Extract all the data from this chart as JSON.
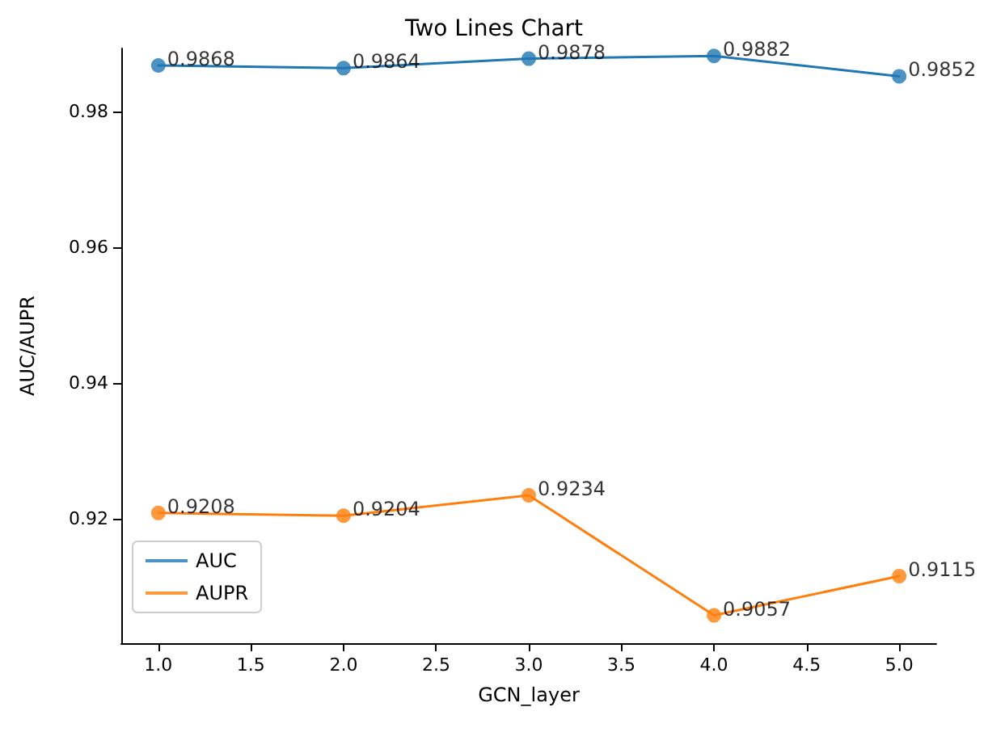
{
  "chart_data": {
    "type": "line",
    "title": "Two Lines Chart",
    "xlabel": "GCN_layer",
    "ylabel": "AUC/AUPR",
    "x": [
      1,
      2,
      3,
      4,
      5
    ],
    "series": [
      {
        "name": "AUC",
        "color": "#1f77b4",
        "values": [
          0.9868,
          0.9864,
          0.9878,
          0.9882,
          0.9852
        ]
      },
      {
        "name": "AUPR",
        "color": "#ff7f0e",
        "values": [
          0.9208,
          0.9204,
          0.9234,
          0.9057,
          0.9115
        ]
      }
    ],
    "xlim": [
      0.8,
      5.2
    ],
    "xticks": [
      {
        "value": 1,
        "label": "1.0"
      },
      {
        "value": 1.5,
        "label": "1.5"
      },
      {
        "value": 2,
        "label": "2.0"
      },
      {
        "value": 2.5,
        "label": "2.5"
      },
      {
        "value": 3,
        "label": "3.0"
      },
      {
        "value": 3.5,
        "label": "3.5"
      },
      {
        "value": 4,
        "label": "4.0"
      },
      {
        "value": 4.5,
        "label": "4.5"
      },
      {
        "value": 5,
        "label": "5.0"
      }
    ],
    "ylim": [
      0.9016,
      0.9893
    ],
    "yticks": [
      0.92,
      0.94,
      0.96,
      0.98
    ],
    "data_labels": true,
    "legend": "bottom left",
    "marker": "circle",
    "line_style": "solid",
    "grid": false
  }
}
